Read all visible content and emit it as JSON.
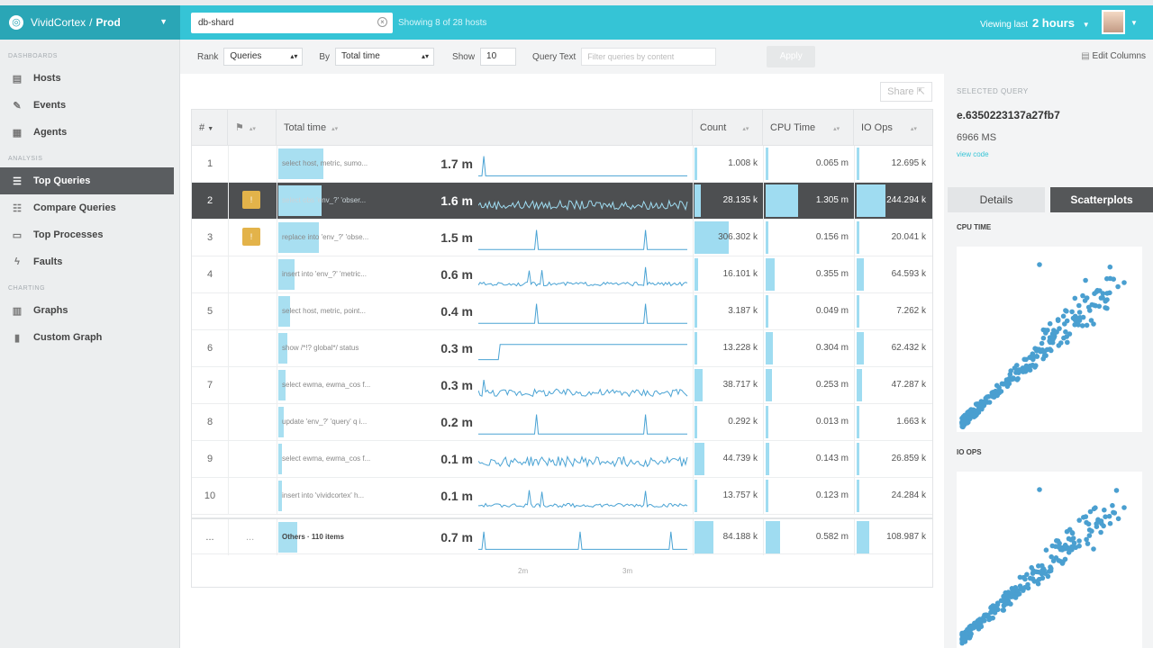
{
  "topbar": {
    "org": "VividCortex",
    "env": "Prod",
    "search_value": "db-shard",
    "showing": "Showing 8 of 28 hosts",
    "range_prefix": "Viewing last",
    "range_value": "2 hours"
  },
  "sidebar": {
    "sections": [
      {
        "title": "DASHBOARDS",
        "items": [
          {
            "label": "Hosts",
            "icon": "hosts-icon"
          },
          {
            "label": "Events",
            "icon": "events-icon"
          },
          {
            "label": "Agents",
            "icon": "agents-icon"
          }
        ]
      },
      {
        "title": "ANALYSIS",
        "items": [
          {
            "label": "Top Queries",
            "icon": "list-icon",
            "active": true
          },
          {
            "label": "Compare Queries",
            "icon": "compare-icon"
          },
          {
            "label": "Top Processes",
            "icon": "processes-icon"
          },
          {
            "label": "Faults",
            "icon": "fault-icon"
          }
        ]
      },
      {
        "title": "CHARTING",
        "items": [
          {
            "label": "Graphs",
            "icon": "graph-icon"
          },
          {
            "label": "Custom Graph",
            "icon": "custom-graph-icon"
          }
        ]
      }
    ]
  },
  "filters": {
    "rank_label": "Rank",
    "rank_value": "Queries",
    "by_label": "By",
    "by_value": "Total time",
    "show_label": "Show",
    "show_value": "10",
    "querytext_label": "Query Text",
    "querytext_placeholder": "Filter queries by content",
    "apply_label": "Apply",
    "edit_columns": "Edit Columns"
  },
  "share_label": "Share",
  "table": {
    "headers": {
      "rank": "#",
      "flag": "",
      "total_time": "Total time",
      "count": "Count",
      "cpu": "CPU Time",
      "io": "IO Ops"
    },
    "rows": [
      {
        "rank": "1",
        "flag": "",
        "query": "select host, metric, sumo...",
        "time": "1.7 m",
        "count": "1.008 k",
        "cpu": "0.065 m",
        "io": "12.695 k",
        "qfrac": 0.36,
        "cfrac": 0.0,
        "cpufrac": 0.0,
        "iofrac": 0.0,
        "spark": "flat-spike"
      },
      {
        "rank": "2",
        "flag": "!",
        "query": "select obs 'env_?' 'obser...",
        "time": "1.6 m",
        "count": "28.135 k",
        "cpu": "1.305 m",
        "io": "244.294 k",
        "qfrac": 0.34,
        "cfrac": 0.09,
        "cpufrac": 0.45,
        "iofrac": 0.4,
        "spark": "dense",
        "selected": true
      },
      {
        "rank": "3",
        "flag": "!",
        "query": "replace into 'env_?' 'obse...",
        "time": "1.5 m",
        "count": "306.302 k",
        "cpu": "0.156 m",
        "io": "20.041 k",
        "qfrac": 0.32,
        "cfrac": 0.5,
        "cpufrac": 0.0,
        "iofrac": 0.0,
        "spark": "two-spikes"
      },
      {
        "rank": "4",
        "flag": "",
        "query": "insert into 'env_?' 'metric...",
        "time": "0.6 m",
        "count": "16.101 k",
        "cpu": "0.355 m",
        "io": "64.593 k",
        "qfrac": 0.13,
        "cfrac": 0.05,
        "cpufrac": 0.12,
        "iofrac": 0.1,
        "spark": "noisy-spikes"
      },
      {
        "rank": "5",
        "flag": "",
        "query": "select host, metric, point...",
        "time": "0.4 m",
        "count": "3.187 k",
        "cpu": "0.049 m",
        "io": "7.262 k",
        "qfrac": 0.09,
        "cfrac": 0.01,
        "cpufrac": 0.02,
        "iofrac": 0.01,
        "spark": "two-spikes"
      },
      {
        "rank": "6",
        "flag": "",
        "query": "show /*!? global*/ status",
        "time": "0.3 m",
        "count": "13.228 k",
        "cpu": "0.304 m",
        "io": "62.432 k",
        "qfrac": 0.07,
        "cfrac": 0.04,
        "cpufrac": 0.1,
        "iofrac": 0.1,
        "spark": "step"
      },
      {
        "rank": "7",
        "flag": "",
        "query": "select ewma, ewma_cos f...",
        "time": "0.3 m",
        "count": "38.717 k",
        "cpu": "0.253 m",
        "io": "47.287 k",
        "qfrac": 0.06,
        "cfrac": 0.12,
        "cpufrac": 0.09,
        "iofrac": 0.08,
        "spark": "noisy"
      },
      {
        "rank": "8",
        "flag": "",
        "query": "update 'env_?' 'query' q i...",
        "time": "0.2 m",
        "count": "0.292 k",
        "cpu": "0.013 m",
        "io": "1.663 k",
        "qfrac": 0.04,
        "cfrac": 0.01,
        "cpufrac": 0.0,
        "iofrac": 0.0,
        "spark": "two-spikes"
      },
      {
        "rank": "9",
        "flag": "",
        "query": "select ewma, ewma_cos f...",
        "time": "0.1 m",
        "count": "44.739 k",
        "cpu": "0.143 m",
        "io": "26.859 k",
        "qfrac": 0.03,
        "cfrac": 0.14,
        "cpufrac": 0.05,
        "iofrac": 0.04,
        "spark": "very-noisy"
      },
      {
        "rank": "10",
        "flag": "",
        "query": "insert into 'vividcortex' h...",
        "time": "0.1 m",
        "count": "13.757 k",
        "cpu": "0.123 m",
        "io": "24.284 k",
        "qfrac": 0.03,
        "cfrac": 0.04,
        "cpufrac": 0.04,
        "iofrac": 0.04,
        "spark": "noisy-spikes"
      },
      {
        "rank": "...",
        "flag": "...",
        "query": "Others · 110 items",
        "time": "0.7 m",
        "count": "84.188 k",
        "cpu": "0.582 m",
        "io": "108.987 k",
        "qfrac": 0.15,
        "cfrac": 0.27,
        "cpufrac": 0.2,
        "iofrac": 0.18,
        "spark": "sparse-spikes",
        "others": true
      }
    ],
    "axis_ticks": [
      "2m",
      "3m"
    ]
  },
  "right_pane": {
    "selected_label": "SELECTED QUERY",
    "query_id": "e.6350223137a27fb7",
    "ms": "6966 MS",
    "view_code": "view code",
    "tab_details": "Details",
    "tab_scatter": "Scatterplots",
    "plot1_label": "CPU TIME",
    "plot2_label": "IO OPS"
  },
  "colors": {
    "accent": "#35c4d6",
    "bar": "#9fdcf1",
    "spark": "#4aa3d4",
    "selected_row": "#4d4f51",
    "flag": "#e3b34a",
    "dot": "#4a9fd0"
  }
}
